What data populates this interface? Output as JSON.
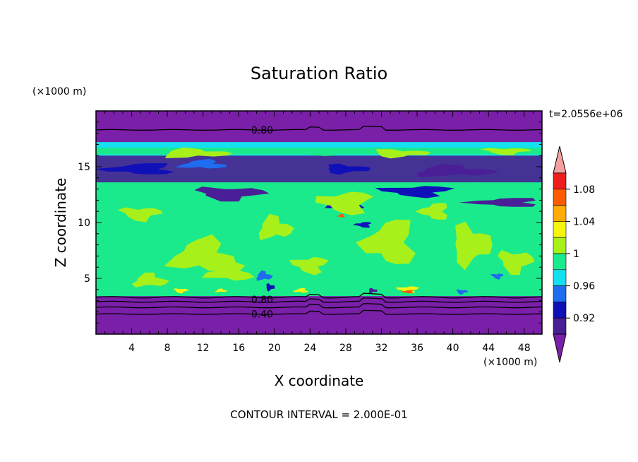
{
  "chart_data": {
    "type": "heatmap",
    "title": "Saturation Ratio",
    "xlabel": "X coordinate",
    "ylabel": "Z coordinate",
    "x_unit": "(×1000 m)",
    "y_unit": "(×1000 m)",
    "time_label": "t=2.0556e+06",
    "footer": "CONTOUR INTERVAL = 2.000E-01",
    "xlim": [
      0,
      50
    ],
    "ylim": [
      0,
      20
    ],
    "x_ticks": [
      4,
      8,
      12,
      16,
      20,
      24,
      28,
      32,
      36,
      40,
      44,
      48
    ],
    "y_ticks": [
      5,
      10,
      15
    ],
    "contour_labels": [
      {
        "text": "0.80",
        "x": 17,
        "z": 18.3
      },
      {
        "text": "0.80",
        "x": 17,
        "z": 3.1
      },
      {
        "text": "0.40",
        "x": 17,
        "z": 1.8
      }
    ],
    "colorbar": {
      "tick_labels": [
        "1.08",
        "1.04",
        "1",
        "0.96",
        "0.92"
      ],
      "bins": [
        {
          "lo": null,
          "hi": 0.9,
          "color": "#7a1fa8"
        },
        {
          "lo": 0.9,
          "hi": 0.92,
          "color": "#4a1e96"
        },
        {
          "lo": 0.92,
          "hi": 0.94,
          "color": "#1010b8"
        },
        {
          "lo": 0.94,
          "hi": 0.96,
          "color": "#1e6cf0"
        },
        {
          "lo": 0.96,
          "hi": 0.98,
          "color": "#15e0f0"
        },
        {
          "lo": 0.98,
          "hi": 1.0,
          "color": "#1aea8c"
        },
        {
          "lo": 1.0,
          "hi": 1.02,
          "color": "#a8f01a"
        },
        {
          "lo": 1.02,
          "hi": 1.04,
          "color": "#f5f510"
        },
        {
          "lo": 1.04,
          "hi": 1.06,
          "color": "#ffaa00"
        },
        {
          "lo": 1.06,
          "hi": 1.08,
          "color": "#ff5a00"
        },
        {
          "lo": 1.08,
          "hi": 1.1,
          "color": "#ee1e1e"
        },
        {
          "lo": 1.1,
          "hi": null,
          "color": "#f5a0a0"
        }
      ]
    },
    "regions": [
      {
        "z": [
          0,
          3.4
        ],
        "value": 0.5,
        "description_color": "purple"
      },
      {
        "z": [
          3.4,
          17.0
        ],
        "value": 0.99,
        "description_color": "green"
      },
      {
        "z": [
          17.0,
          20
        ],
        "value": 0.8,
        "description_color": "purple"
      }
    ]
  }
}
